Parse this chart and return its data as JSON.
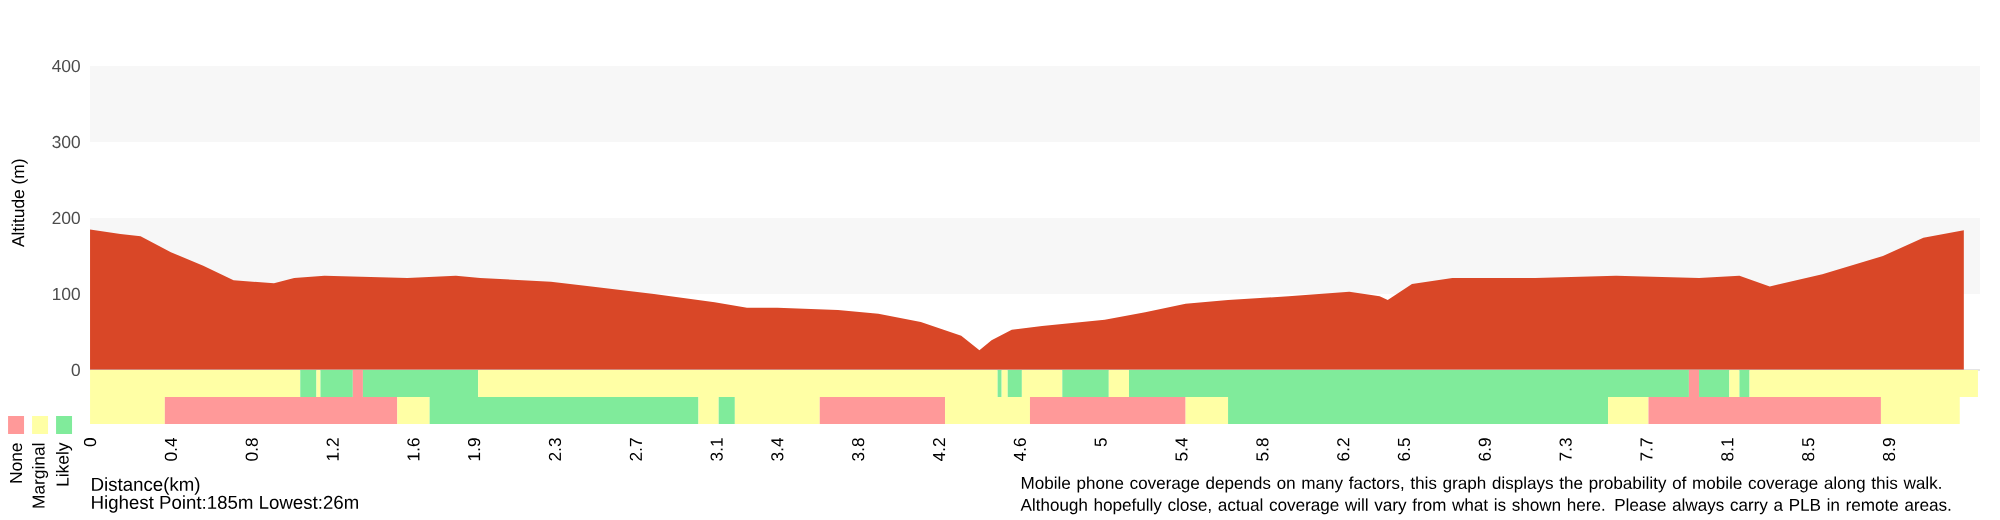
{
  "chart_data": [
    {
      "type": "area",
      "xlabel": "Distance(km)",
      "ylabel": "Altitude (m)",
      "color": "#d94727",
      "tick_labels": "y",
      "x": [
        0,
        0.15,
        0.25,
        0.4,
        0.56,
        0.71,
        0.91,
        1.01,
        1.16,
        1.57,
        1.81,
        1.93,
        2.28,
        2.48,
        2.79,
        3.09,
        3.25,
        3.4,
        3.7,
        3.9,
        4.11,
        4.31,
        4.4,
        4.46,
        4.56,
        4.71,
        5.02,
        5.22,
        5.42,
        5.63,
        5.93,
        6.23,
        6.38,
        6.42,
        6.54,
        6.74,
        7.15,
        7.55,
        7.96,
        8.16,
        8.31,
        8.57,
        8.87,
        9.07,
        9.27
      ],
      "values": [
        185,
        179,
        176,
        155,
        137,
        118,
        114,
        121,
        124,
        121,
        124,
        121,
        116,
        110,
        100,
        89,
        82,
        82,
        79,
        74,
        63,
        45,
        26,
        39,
        53,
        58,
        66,
        76,
        87,
        92,
        97,
        103,
        97,
        92,
        113,
        121,
        121,
        124,
        121,
        124,
        110,
        126,
        150,
        174,
        184
      ],
      "xlim": [
        0,
        9.35
      ],
      "ylim": [
        0,
        400
      ],
      "yticks": [
        0,
        100,
        200,
        300,
        400
      ],
      "bands": [
        {
          "axis": "y",
          "from": 100,
          "to": 200,
          "color": "#f7f7f7"
        },
        {
          "axis": "y",
          "from": 300,
          "to": 400,
          "color": "#f7f7f7"
        }
      ],
      "annotations": [
        "Highest Point:185m Lowest:26m"
      ]
    },
    {
      "type": "bar",
      "orientation": "horizontal",
      "stacked": true,
      "relative": false,
      "categories": [
        null,
        null
      ],
      "xlim": [
        0,
        9.35
      ],
      "xticks": [
        0,
        0.4,
        0.8,
        1.2,
        1.6,
        1.9,
        2.3,
        2.7,
        3.1,
        3.4,
        3.8,
        4.2,
        4.6,
        5,
        5.4,
        5.8,
        6.2,
        6.5,
        6.9,
        7.3,
        7.7,
        8.1,
        8.5,
        8.9
      ],
      "series": [
        {
          "values": [
            1.04,
            0.37
          ],
          "colors": [
            "#ffffa5",
            "#ffffa5"
          ]
        },
        {
          "values": [
            0.08,
            1.15
          ],
          "colors": [
            "#80eb9b",
            "#ff9999"
          ]
        },
        {
          "values": [
            0.02,
            0.16
          ],
          "colors": [
            "#ffffa5",
            "#ffffa5"
          ]
        },
        {
          "values": [
            0.16,
            1.33
          ],
          "colors": [
            "#80eb9b",
            "#80eb9b"
          ]
        },
        {
          "values": [
            0.05,
            0.1
          ],
          "colors": [
            "#ff9999",
            "#ffffa5"
          ]
        },
        {
          "values": [
            0.57,
            0.08
          ],
          "colors": [
            "#80eb9b",
            "#80eb9b"
          ]
        },
        {
          "values": [
            2.57,
            0.42
          ],
          "colors": [
            "#ffffa5",
            "#ffffa5"
          ]
        },
        {
          "values": [
            0.02,
            0.62
          ],
          "colors": [
            "#80eb9b",
            "#ff9999"
          ]
        },
        {
          "values": [
            0.03,
            0.42
          ],
          "colors": [
            "#ffffa5",
            "#ffffa5"
          ]
        },
        {
          "values": [
            0.07,
            0.77
          ],
          "colors": [
            "#80eb9b",
            "#ff9999"
          ]
        },
        {
          "values": [
            0.2,
            0.21
          ],
          "colors": [
            "#ffffa5",
            "#ffffa5"
          ]
        },
        {
          "values": [
            0.23,
            1.88
          ],
          "colors": [
            "#80eb9b",
            "#80eb9b"
          ]
        },
        {
          "values": [
            0.1,
            0.2
          ],
          "colors": [
            "#ffffa5",
            "#ffffa5"
          ]
        },
        {
          "values": [
            2.77,
            1.15
          ],
          "colors": [
            "#80eb9b",
            "#ff9999"
          ]
        },
        {
          "values": [
            0.05,
            0.39
          ],
          "colors": [
            "#ff9999",
            "#ffffa5"
          ]
        },
        {
          "values": [
            0.15,
            null
          ],
          "colors": [
            "#80eb9b",
            null
          ]
        },
        {
          "values": [
            0.05,
            null
          ],
          "colors": [
            "#ffffa5",
            null
          ]
        },
        {
          "values": [
            0.05,
            null
          ],
          "colors": [
            "#80eb9b",
            null
          ]
        },
        {
          "values": [
            1.13,
            null
          ],
          "colors": [
            "#ffffa5",
            null
          ]
        }
      ],
      "annotations": [
        "Mobile phone coverage depends on many factors, this graph displays the probability of mobile coverage along this walk. Although hopefully close, actual coverage will vary from what is shown here. Please always carry a PLB in remote areas."
      ]
    },
    {
      "type": "other",
      "annotations": [
        "None",
        "Marginal",
        "Likely"
      ],
      "colors": [
        "#ff9999",
        "#ffffa5",
        "#80eb9b"
      ]
    }
  ]
}
